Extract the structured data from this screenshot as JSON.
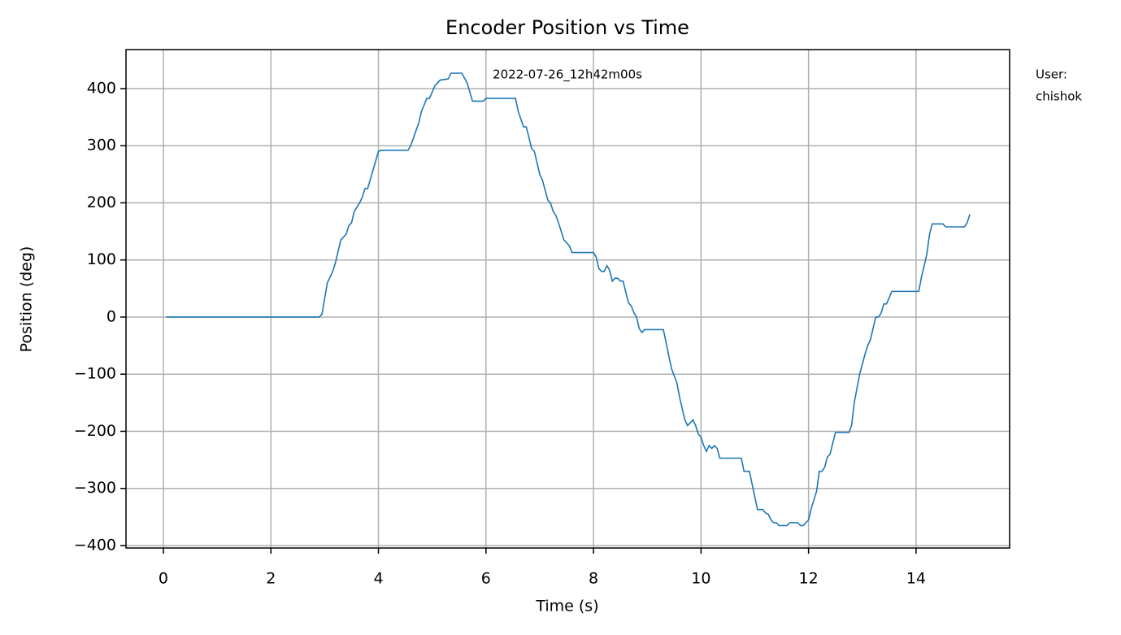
{
  "chart_data": {
    "type": "line",
    "title": "Encoder Position vs Time",
    "x_label": "Time (s)",
    "y_label": "Position (deg)",
    "timestamp": "2022-07-26_12h42m00s",
    "user_lines": [
      "User:",
      "chishok"
    ],
    "color": "#1f77b4",
    "grid": true,
    "xlim": [
      -0.695,
      15.74
    ],
    "ylim": [
      -404.3,
      468.3
    ],
    "xticks": [
      0,
      2,
      4,
      6,
      8,
      10,
      12,
      14
    ],
    "yticks": [
      {
        "value": -400,
        "label": "−400"
      },
      {
        "value": -300,
        "label": "−300"
      },
      {
        "value": -200,
        "label": "−200"
      },
      {
        "value": -100,
        "label": "−100"
      },
      0,
      100,
      200,
      300,
      400
    ],
    "x": [
      0.05,
      2.9,
      2.95,
      3.05,
      3.15,
      3.2,
      3.3,
      3.4,
      3.45,
      3.5,
      3.55,
      3.65,
      3.7,
      3.75,
      3.8,
      4.0,
      4.05,
      4.55,
      4.6,
      4.75,
      4.8,
      4.9,
      4.95,
      5.05,
      5.15,
      5.3,
      5.35,
      5.55,
      5.65,
      5.75,
      5.95,
      6.0,
      6.55,
      6.6,
      6.7,
      6.75,
      6.85,
      6.9,
      7.0,
      7.05,
      7.15,
      7.2,
      7.25,
      7.3,
      7.35,
      7.45,
      7.55,
      7.6,
      8.0,
      8.05,
      8.1,
      8.15,
      8.2,
      8.25,
      8.3,
      8.35,
      8.4,
      8.45,
      8.5,
      8.55,
      8.65,
      8.7,
      8.75,
      8.8,
      8.85,
      8.9,
      8.95,
      9.3,
      9.45,
      9.55,
      9.6,
      9.65,
      9.7,
      9.75,
      9.8,
      9.85,
      9.9,
      9.95,
      10.0,
      10.05,
      10.1,
      10.15,
      10.2,
      10.25,
      10.3,
      10.35,
      10.75,
      10.8,
      10.9,
      11.05,
      11.15,
      11.2,
      11.25,
      11.3,
      11.35,
      11.4,
      11.45,
      11.6,
      11.65,
      11.8,
      11.85,
      11.9,
      12.0,
      12.05,
      12.15,
      12.2,
      12.25,
      12.3,
      12.35,
      12.4,
      12.5,
      12.75,
      12.8,
      12.85,
      12.95,
      13.05,
      13.1,
      13.15,
      13.2,
      13.25,
      13.3,
      13.35,
      13.4,
      13.45,
      13.55,
      14.05,
      14.1,
      14.15,
      14.2,
      14.25,
      14.3,
      14.5,
      14.55,
      14.9,
      14.95,
      15.0
    ],
    "values": [
      0,
      0,
      5,
      60,
      80,
      95,
      135,
      145,
      160,
      165,
      185,
      200,
      210,
      225,
      225,
      290,
      292,
      292,
      300,
      340,
      360,
      383,
      383,
      405,
      415,
      417,
      427,
      427,
      410,
      378,
      378,
      383,
      383,
      360,
      333,
      333,
      295,
      290,
      250,
      240,
      205,
      200,
      185,
      178,
      165,
      135,
      125,
      113,
      113,
      105,
      85,
      80,
      80,
      90,
      82,
      63,
      68,
      68,
      63,
      63,
      25,
      20,
      8,
      0,
      -20,
      -27,
      -22,
      -22,
      -90,
      -115,
      -140,
      -160,
      -180,
      -190,
      -185,
      -180,
      -190,
      -205,
      -210,
      -225,
      -235,
      -225,
      -230,
      -225,
      -230,
      -247,
      -247,
      -270,
      -270,
      -337,
      -337,
      -343,
      -345,
      -355,
      -360,
      -360,
      -365,
      -365,
      -360,
      -360,
      -365,
      -365,
      -355,
      -335,
      -305,
      -270,
      -270,
      -263,
      -245,
      -240,
      -202,
      -202,
      -190,
      -150,
      -100,
      -65,
      -50,
      -40,
      -20,
      0,
      0,
      7,
      23,
      23,
      45,
      45,
      70,
      90,
      110,
      145,
      163,
      163,
      158,
      158,
      165,
      180
    ]
  }
}
